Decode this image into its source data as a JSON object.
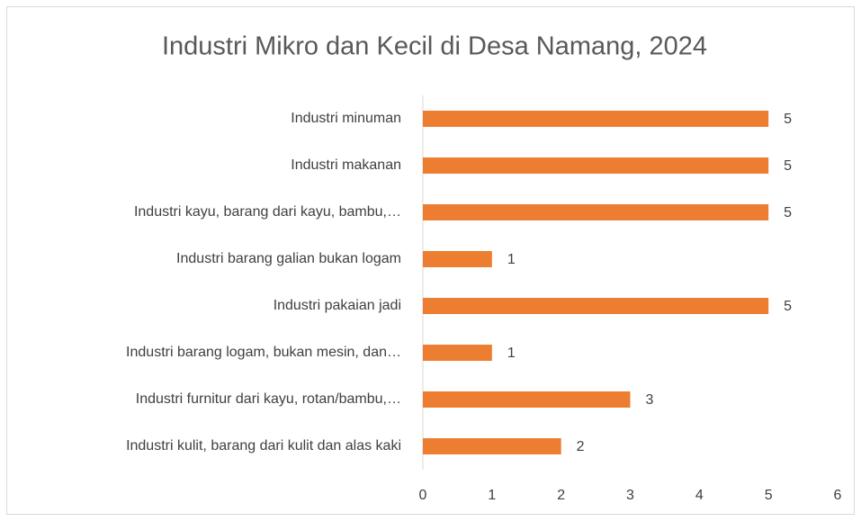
{
  "chart_data": {
    "type": "bar",
    "orientation": "horizontal",
    "title": "Industri Mikro dan Kecil di Desa Namang, 2024",
    "categories": [
      "Industri minuman",
      "Industri makanan",
      "Industri kayu, barang dari kayu, bambu,…",
      "Industri barang galian bukan logam",
      "Industri pakaian jadi",
      "Industri barang logam, bukan mesin, dan…",
      "Industri furnitur dari kayu, rotan/bambu,…",
      "Industri kulit, barang dari kulit dan alas kaki"
    ],
    "values": [
      5,
      5,
      5,
      1,
      5,
      1,
      3,
      2
    ],
    "color": "#ed7d31",
    "xlim": [
      0,
      6
    ],
    "xticks": [
      0,
      1,
      2,
      3,
      4,
      5,
      6
    ],
    "grid": false
  }
}
